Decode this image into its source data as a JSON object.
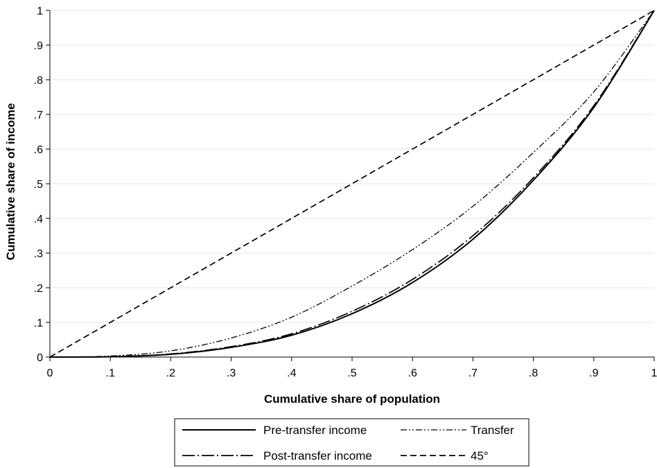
{
  "chart_data": {
    "type": "line",
    "xlabel": "Cumulative share of population",
    "ylabel": "Cumulative share of income",
    "xlim": [
      0,
      1
    ],
    "ylim": [
      0,
      1
    ],
    "x_ticks": [
      0,
      0.1,
      0.2,
      0.3,
      0.4,
      0.5,
      0.6,
      0.7,
      0.8,
      0.9,
      1
    ],
    "x_tick_labels": [
      "0",
      ".1",
      ".2",
      ".3",
      ".4",
      ".5",
      ".6",
      ".7",
      ".8",
      ".9",
      "1"
    ],
    "y_ticks": [
      0,
      0.1,
      0.2,
      0.3,
      0.4,
      0.5,
      0.6,
      0.7,
      0.8,
      0.9,
      1
    ],
    "y_tick_labels": [
      "0",
      ".1",
      ".2",
      ".3",
      ".4",
      ".5",
      ".6",
      ".7",
      ".8",
      ".9",
      "1"
    ],
    "grid": "horizontal",
    "legend_position": "bottom",
    "series": [
      {
        "name": "Pre-transfer income",
        "style": "solid",
        "color": "#000000",
        "x": [
          0,
          0.1,
          0.2,
          0.3,
          0.4,
          0.5,
          0.6,
          0.7,
          0.8,
          0.9,
          1
        ],
        "y": [
          0,
          0.001,
          0.008,
          0.028,
          0.063,
          0.125,
          0.215,
          0.34,
          0.51,
          0.72,
          1
        ]
      },
      {
        "name": "Transfer",
        "style": "dash-dot-dot",
        "color": "#000000",
        "x": [
          0,
          0.1,
          0.2,
          0.3,
          0.4,
          0.5,
          0.6,
          0.7,
          0.8,
          0.9,
          1
        ],
        "y": [
          0,
          0.003,
          0.018,
          0.055,
          0.115,
          0.205,
          0.31,
          0.435,
          0.59,
          0.765,
          1
        ]
      },
      {
        "name": "Post-transfer income",
        "style": "long-dash-dot",
        "color": "#000000",
        "x": [
          0,
          0.1,
          0.2,
          0.3,
          0.4,
          0.5,
          0.6,
          0.7,
          0.8,
          0.9,
          1
        ],
        "y": [
          0,
          0.001,
          0.009,
          0.03,
          0.067,
          0.132,
          0.224,
          0.35,
          0.517,
          0.725,
          1
        ]
      },
      {
        "name": "45°",
        "style": "dashed",
        "color": "#000000",
        "x": [
          0,
          1
        ],
        "y": [
          0,
          1
        ]
      }
    ]
  }
}
